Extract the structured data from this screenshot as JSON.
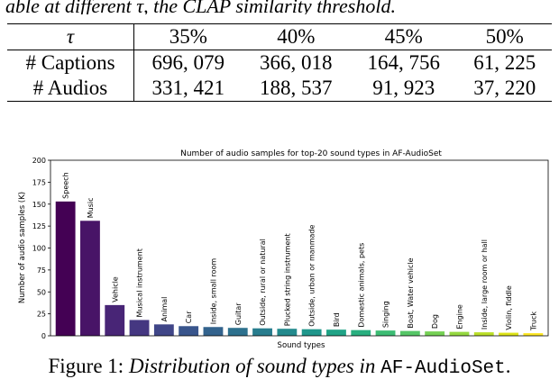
{
  "top_caption": "able at different τ, the CLAP similarity threshold.",
  "table": {
    "header": [
      "τ",
      "35%",
      "40%",
      "45%",
      "50%"
    ],
    "rows": [
      {
        "label": "# Captions",
        "values": [
          "696, 079",
          "366, 018",
          "164, 756",
          "61, 225"
        ]
      },
      {
        "label": "# Audios",
        "values": [
          "331, 421",
          "188, 537",
          "91, 923",
          "37, 220"
        ]
      }
    ]
  },
  "chart_data": {
    "type": "bar",
    "title": "Number of audio samples for top-20 sound types in AF-AudioSet",
    "xlabel": "Sound types",
    "ylabel": "Number of audio samples (K)",
    "ylim": [
      0,
      200
    ],
    "yticks": [
      "0",
      "25",
      "50",
      "75",
      "100",
      "125",
      "150",
      "175",
      "200"
    ],
    "categories": [
      "Speech",
      "Music",
      "Vehicle",
      "Musical instrument",
      "Animal",
      "Car",
      "Inside, small room",
      "Guitar",
      "Outside, rural or natural",
      "Plucked string instrument",
      "Outside, urban or manmade",
      "Bird",
      "Domestic animals, pets",
      "Singing",
      "Boat, Water vehicle",
      "Dog",
      "Engine",
      "Inside, large room or hall",
      "Violin, fiddle",
      "Truck"
    ],
    "values": [
      153,
      131,
      35,
      18,
      13,
      11,
      10,
      9,
      8.5,
      8,
      7.5,
      7,
      6.5,
      6,
      5.5,
      5,
      4.5,
      4,
      3.5,
      3
    ],
    "colors": [
      "#440154",
      "#481467",
      "#482576",
      "#453781",
      "#404688",
      "#39558c",
      "#33638d",
      "#2d718e",
      "#287d8e",
      "#238a8d",
      "#1f968b",
      "#20a386",
      "#29af7f",
      "#3dbc74",
      "#56c667",
      "#75d054",
      "#95d840",
      "#bade28",
      "#dde318",
      "#fde725"
    ],
    "grid": false,
    "legend": "none"
  },
  "figure_caption": {
    "label": "Figure 1:",
    "text": "Distribution of sound types in",
    "code": "AF-AudioSet",
    "end": "."
  }
}
